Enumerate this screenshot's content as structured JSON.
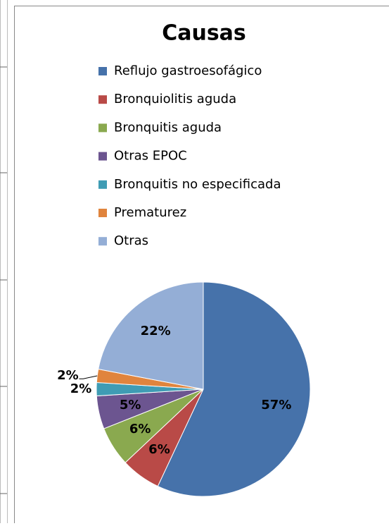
{
  "chart_data": {
    "type": "pie",
    "title": "Causas",
    "categories": [
      "Reflujo gastroesofágico",
      "Bronquiolitis aguda",
      "Bronquitis aguda",
      "Otras EPOC",
      "Bronquitis no especificada",
      "Prematurez",
      "Otras"
    ],
    "values": [
      57,
      6,
      6,
      5,
      2,
      2,
      22
    ],
    "value_labels": [
      "57%",
      "6%",
      "6%",
      "5%",
      "2%",
      "2%",
      "22%"
    ],
    "colors": [
      "#4672aa",
      "#b94a47",
      "#8aa94f",
      "#6c5590",
      "#3f9cb4",
      "#e0843d",
      "#94aed6"
    ]
  }
}
